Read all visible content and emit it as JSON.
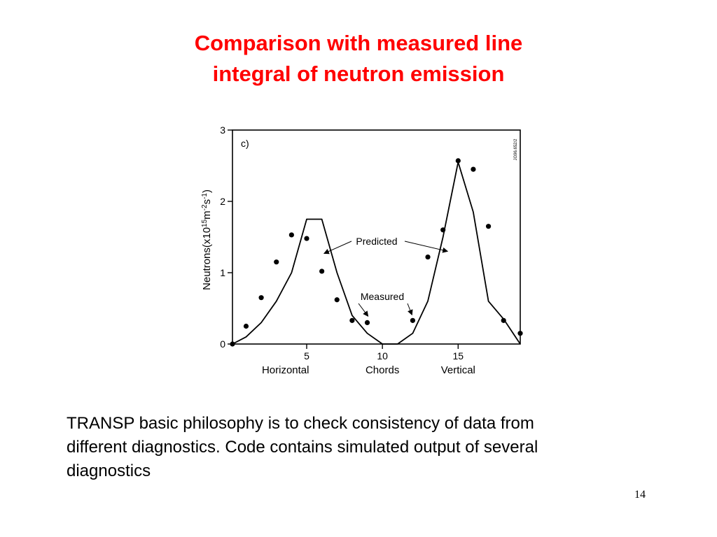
{
  "slide": {
    "title_lines": [
      "Comparison with measured line",
      "integral of neutron emission"
    ],
    "body_lines": [
      "TRANSP basic philosophy is to check consistency of data from",
      "different diagnostics.  Code contains simulated output of several",
      "diagnostics"
    ],
    "page_number": "14",
    "title_color": "#ff0000"
  },
  "chart_data": {
    "type": "line",
    "panel_label": "c)",
    "ylabel_parts": [
      "Neutrons(x10",
      "15",
      "m",
      "-2",
      "s",
      "-1",
      ")"
    ],
    "x_group_labels": [
      "Horizontal",
      "Chords",
      "Vertical"
    ],
    "side_code": "JG96.652/2",
    "xlim": [
      0.1,
      19.1
    ],
    "ylim": [
      0,
      3
    ],
    "x_ticks": [
      5,
      10,
      15
    ],
    "y_ticks": [
      0,
      1,
      2,
      3
    ],
    "grid": false,
    "series": [
      {
        "name": "Predicted",
        "style": "line",
        "x": [
          0.1,
          1,
          2,
          3,
          4,
          5,
          6,
          7,
          8,
          9,
          10,
          11,
          12,
          13,
          14,
          15,
          16,
          17,
          18,
          19.1
        ],
        "y": [
          0,
          0.1,
          0.3,
          0.6,
          1.0,
          1.75,
          1.75,
          1.0,
          0.4,
          0.15,
          0.0,
          0.0,
          0.15,
          0.6,
          1.5,
          2.55,
          1.85,
          0.6,
          0.35,
          0.0
        ]
      },
      {
        "name": "Measured",
        "style": "points",
        "x": [
          0.1,
          1,
          2,
          3,
          4,
          5,
          6,
          7,
          8,
          9,
          12,
          13,
          14,
          15,
          16,
          17,
          18,
          19.1
        ],
        "y": [
          0.0,
          0.25,
          0.65,
          1.15,
          1.53,
          1.48,
          1.02,
          0.62,
          0.33,
          0.3,
          0.33,
          1.22,
          1.6,
          2.57,
          2.45,
          1.65,
          0.33,
          0.15
        ]
      }
    ],
    "annotations": [
      {
        "text": "Predicted",
        "target": "Predicted"
      },
      {
        "text": "Measured",
        "target": "Measured"
      }
    ],
    "colors": {
      "line": "#000000",
      "points": "#000000"
    }
  }
}
